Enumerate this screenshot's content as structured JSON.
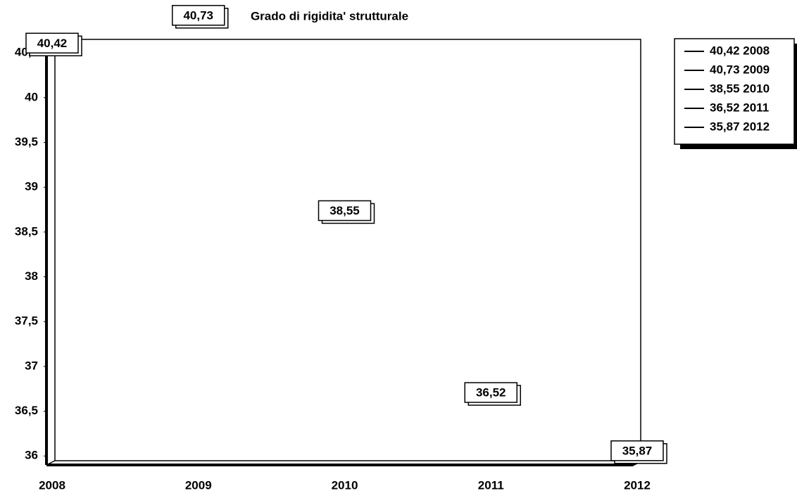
{
  "chart_data": {
    "type": "line",
    "title": "Grado di rigidita' strutturale",
    "categories": [
      "2008",
      "2009",
      "2010",
      "2011",
      "2012"
    ],
    "values": [
      40.42,
      40.73,
      38.55,
      36.52,
      35.87
    ],
    "value_labels": [
      "40,42",
      "40,73",
      "38,55",
      "36,52",
      "35,87"
    ],
    "ylim": [
      35.9,
      40.65
    ],
    "yticks": [
      36,
      {
        "value": 36.5,
        "label": "36,5"
      },
      37,
      {
        "value": 37.5,
        "label": "37,5"
      },
      38,
      {
        "value": 38.5,
        "label": "38,5"
      },
      39,
      {
        "value": 39.5,
        "label": "39,5"
      },
      40,
      {
        "value": 40.5,
        "label": "40,5"
      }
    ],
    "legend": [
      "40,42 2008",
      "40,73 2009",
      "38,55 2010",
      "36,52 2011",
      "35,87 2012"
    ],
    "grid": false
  }
}
